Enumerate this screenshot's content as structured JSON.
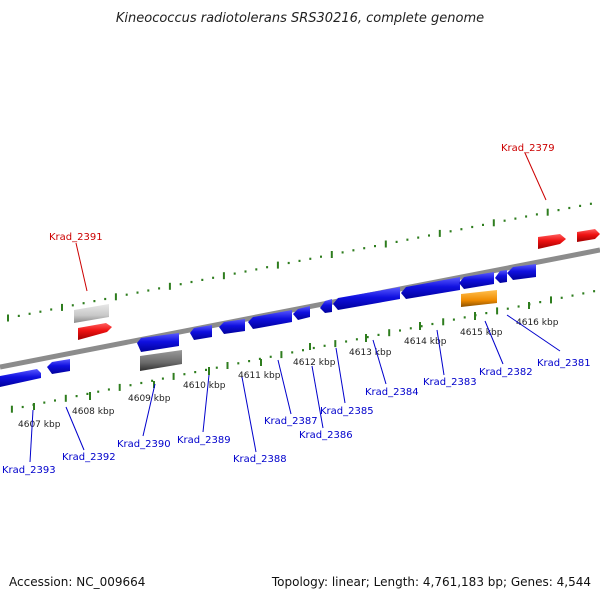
{
  "title": "Kineococcus radiotolerans SRS30216, complete genome",
  "footer": {
    "accession": "Accession: NC_009664",
    "topology": "Topology: linear; Length: 4,761,183 bp; Genes: 4,544"
  },
  "colors": {
    "backbone": "#8c8c8c",
    "tick": "#2e7d1e",
    "minus_strand_gene": "#1010e0",
    "plus_strand_gene": "#ee1111",
    "highlight_gene": "#f08c00",
    "pseudo_gene_dark": "#6a6a6a",
    "pseudo_gene_light": "#c8c8c8",
    "blue_label": "#0000cc",
    "red_label": "#cc0000"
  },
  "kbp_labels": [
    "4607 kbp",
    "4608 kbp",
    "4609 kbp",
    "4610 kbp",
    "4611 kbp",
    "4612 kbp",
    "4613 kbp",
    "4614 kbp",
    "4615 kbp",
    "4616 kbp"
  ],
  "gene_labels_blue": [
    "Krad_2393",
    "Krad_2392",
    "Krad_2390",
    "Krad_2389",
    "Krad_2388",
    "Krad_2387",
    "Krad_2386",
    "Krad_2385",
    "Krad_2384",
    "Krad_2383",
    "Krad_2382",
    "Krad_2381"
  ],
  "gene_labels_red": [
    "Krad_2391",
    "Krad_2379"
  ]
}
